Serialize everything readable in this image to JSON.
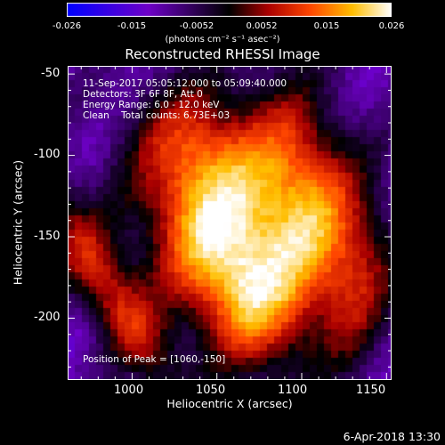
{
  "colorbar": {
    "tick_labels": [
      "-0.026",
      "-0.015",
      "-0.0052",
      "0.0052",
      "0.015",
      "0.026"
    ],
    "units": "(photons cm⁻² s⁻¹ asec⁻²)",
    "min": -0.026,
    "max": 0.026
  },
  "plot": {
    "title": "Reconstructed RHESSI Image",
    "annotations": {
      "time": "11-Sep-2017 05:05:12.000 to 05:09:40.000",
      "detectors": "Detectors: 3F 6F 8F, Att 0",
      "energy": "Energy Range: 6.0 - 12.0 keV",
      "clean": "Clean    Total counts: 6.73E+03",
      "peak": "Position of Peak = [1060,-150]"
    },
    "xlabel": "Heliocentric X (arcsec)",
    "ylabel": "Heliocentric Y (arcsec)",
    "x_ticks": [
      "1000",
      "1050",
      "1100",
      "1150"
    ],
    "y_ticks": [
      "-50",
      "-100",
      "-150",
      "-200"
    ],
    "x_range": [
      962,
      1153
    ],
    "y_range": [
      -45,
      -238
    ],
    "colors": {
      "background": "#000000",
      "text": "#ffffff"
    }
  },
  "footer": {
    "timestamp": "6-Apr-2018 13:30"
  }
}
